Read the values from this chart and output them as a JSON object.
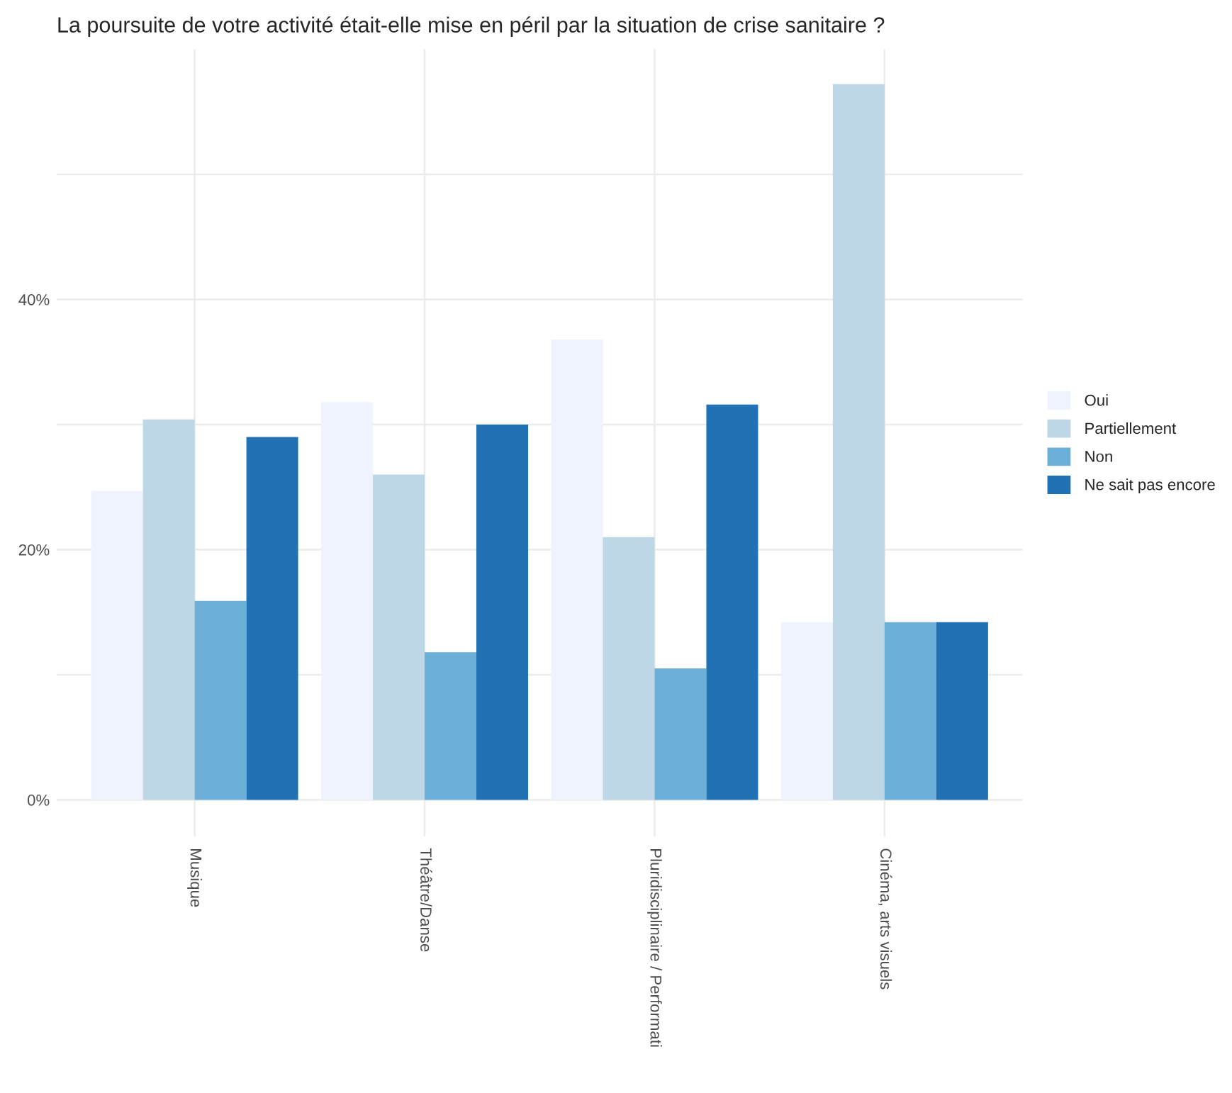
{
  "chart_data": {
    "type": "bar",
    "title": "La poursuite de votre activité était-elle mise en péril par la situation de crise sanitaire ?",
    "categories": [
      "Musique",
      "Théâtre/Danse",
      "Pluridisciplinaire / Performati",
      "Cinéma, arts visuels"
    ],
    "series": [
      {
        "name": "Oui",
        "color": "#eff3ff",
        "values": [
          24.7,
          31.8,
          36.8,
          14.2
        ]
      },
      {
        "name": "Partiellement",
        "color": "#bdd7e7",
        "values": [
          30.4,
          26.0,
          21.0,
          57.2
        ]
      },
      {
        "name": "Non",
        "color": "#6baed6",
        "values": [
          15.9,
          11.8,
          10.5,
          14.2
        ]
      },
      {
        "name": "Ne sait pas encore",
        "color": "#2171b5",
        "values": [
          29.0,
          30.0,
          31.6,
          14.2
        ]
      }
    ],
    "ylim": [
      -2.9,
      60
    ],
    "yticks": [
      {
        "value": 0,
        "label": "0%"
      },
      {
        "value": 10,
        "label": null
      },
      {
        "value": 20,
        "label": "20%"
      },
      {
        "value": 30,
        "label": null
      },
      {
        "value": 40,
        "label": "40%"
      },
      {
        "value": 50,
        "label": null
      }
    ],
    "grid": true,
    "legend": "right"
  }
}
